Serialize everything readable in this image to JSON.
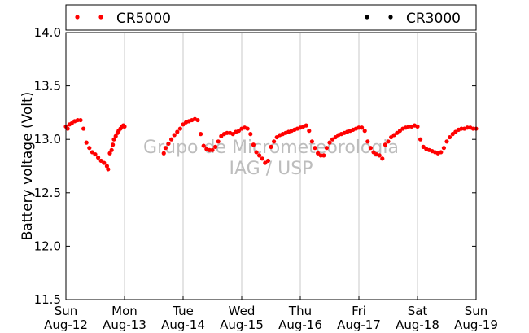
{
  "chart_data": {
    "type": "scatter",
    "ylabel": "Battery voltage (Volt)",
    "xlabel": "",
    "ylim": [
      11.5,
      14.0
    ],
    "xlim": [
      0,
      7
    ],
    "y_ticks": [
      "11.5",
      "12.0",
      "12.5",
      "13.0",
      "13.5",
      "14.0"
    ],
    "x_ticks": [
      {
        "day": "Sun",
        "date": "Aug-12"
      },
      {
        "day": "Mon",
        "date": "Aug-13"
      },
      {
        "day": "Tue",
        "date": "Aug-14"
      },
      {
        "day": "Wed",
        "date": "Aug-15"
      },
      {
        "day": "Thu",
        "date": "Aug-16"
      },
      {
        "day": "Fri",
        "date": "Aug-17"
      },
      {
        "day": "Sat",
        "date": "Aug-18"
      },
      {
        "day": "Sun",
        "date": "Aug-19"
      }
    ],
    "grid": "vertical",
    "legend": {
      "placement": "top",
      "entries": [
        {
          "name": "CR5000",
          "color": "#ff0000"
        },
        {
          "name": "CR3000",
          "color": "#000000"
        }
      ]
    },
    "watermark": [
      "Grupo de Micrometeorologia",
      "IAG / USP"
    ],
    "series": [
      {
        "name": "CR5000",
        "color": "#ff0000",
        "x": [
          0.0,
          0.03,
          0.06,
          0.1,
          0.15,
          0.2,
          0.25,
          0.3,
          0.35,
          0.4,
          0.45,
          0.5,
          0.55,
          0.6,
          0.65,
          0.7,
          0.72,
          0.75,
          0.78,
          0.8,
          0.82,
          0.85,
          0.88,
          0.9,
          0.93,
          0.96,
          0.98,
          1.0,
          1.67,
          1.7,
          1.75,
          1.8,
          1.85,
          1.9,
          1.95,
          2.0,
          2.05,
          2.1,
          2.15,
          2.2,
          2.25,
          2.3,
          2.35,
          2.4,
          2.45,
          2.5,
          2.55,
          2.6,
          2.65,
          2.7,
          2.75,
          2.8,
          2.85,
          2.9,
          2.95,
          3.0,
          3.05,
          3.1,
          3.15,
          3.2,
          3.25,
          3.3,
          3.35,
          3.4,
          3.45,
          3.5,
          3.55,
          3.6,
          3.65,
          3.7,
          3.75,
          3.8,
          3.85,
          3.9,
          3.95,
          4.0,
          4.05,
          4.1,
          4.15,
          4.2,
          4.25,
          4.3,
          4.35,
          4.4,
          4.45,
          4.5,
          4.55,
          4.6,
          4.65,
          4.7,
          4.75,
          4.8,
          4.85,
          4.9,
          4.95,
          5.0,
          5.05,
          5.1,
          5.15,
          5.2,
          5.25,
          5.3,
          5.35,
          5.4,
          5.45,
          5.5,
          5.55,
          5.6,
          5.65,
          5.7,
          5.75,
          5.8,
          5.85,
          5.9,
          5.95,
          6.0,
          6.05,
          6.1,
          6.15,
          6.2,
          6.25,
          6.3,
          6.35,
          6.4,
          6.45,
          6.5,
          6.55,
          6.6,
          6.65,
          6.7,
          6.75,
          6.8,
          6.85,
          6.9,
          6.95,
          7.0
        ],
        "y": [
          13.12,
          13.1,
          13.14,
          13.15,
          13.17,
          13.18,
          13.18,
          13.1,
          12.97,
          12.92,
          12.88,
          12.86,
          12.83,
          12.8,
          12.78,
          12.75,
          12.72,
          12.87,
          12.9,
          12.95,
          13.0,
          13.03,
          13.06,
          13.08,
          13.1,
          13.12,
          13.13,
          13.12,
          12.87,
          12.92,
          12.96,
          13.0,
          13.04,
          13.07,
          13.1,
          13.14,
          13.16,
          13.17,
          13.18,
          13.19,
          13.18,
          13.05,
          12.94,
          12.91,
          12.9,
          12.9,
          12.93,
          12.98,
          13.03,
          13.05,
          13.06,
          13.06,
          13.05,
          13.07,
          13.08,
          13.1,
          13.11,
          13.1,
          13.05,
          12.95,
          12.88,
          12.85,
          12.82,
          12.78,
          12.8,
          12.93,
          12.98,
          13.02,
          13.04,
          13.05,
          13.06,
          13.07,
          13.08,
          13.09,
          13.1,
          13.11,
          13.12,
          13.13,
          13.08,
          12.98,
          12.92,
          12.87,
          12.85,
          12.85,
          12.92,
          12.97,
          13.0,
          13.02,
          13.04,
          13.05,
          13.06,
          13.07,
          13.08,
          13.09,
          13.1,
          13.11,
          13.11,
          13.08,
          12.98,
          12.92,
          12.88,
          12.86,
          12.85,
          12.82,
          12.95,
          12.98,
          13.02,
          13.04,
          13.06,
          13.08,
          13.1,
          13.11,
          13.12,
          13.12,
          13.13,
          13.12,
          13.0,
          12.93,
          12.91,
          12.9,
          12.89,
          12.88,
          12.87,
          12.88,
          12.92,
          12.98,
          13.02,
          13.05,
          13.07,
          13.09,
          13.1,
          13.1,
          13.11,
          13.11,
          13.1,
          13.1
        ]
      }
    ]
  }
}
